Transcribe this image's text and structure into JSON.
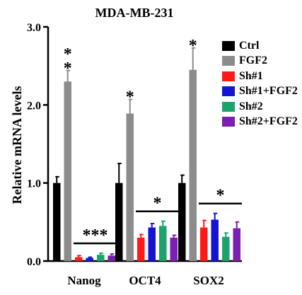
{
  "chart_data": {
    "type": "bar",
    "title": "MDA-MB-231",
    "xlabel": "",
    "ylabel": "Relative mRNA levels",
    "ylim": [
      0,
      3.0
    ],
    "yticks": [
      "0.0",
      "1.0",
      "2.0",
      "3.0"
    ],
    "categories": [
      "Nanog",
      "OCT4",
      "SOX2"
    ],
    "series": [
      {
        "name": "Ctrl",
        "color": "#000000",
        "values": [
          1.0,
          1.0,
          1.0
        ],
        "errors": [
          0.08,
          0.25,
          0.1
        ]
      },
      {
        "name": "FGF2",
        "color": "#8c8c8c",
        "values": [
          2.3,
          1.89,
          2.45
        ],
        "errors": [
          0.14,
          0.18,
          0.28
        ]
      },
      {
        "name": "Sh#1",
        "color": "#ff1a1a",
        "values": [
          0.05,
          0.3,
          0.43
        ],
        "errors": [
          0.02,
          0.04,
          0.09
        ]
      },
      {
        "name": "Sh#1+FGF2",
        "color": "#1414d2",
        "values": [
          0.04,
          0.43,
          0.53
        ],
        "errors": [
          0.01,
          0.05,
          0.08
        ]
      },
      {
        "name": "Sh#2",
        "color": "#1ba36b",
        "values": [
          0.08,
          0.45,
          0.31
        ],
        "errors": [
          0.02,
          0.06,
          0.05
        ]
      },
      {
        "name": "Sh#2+FGF2",
        "color": "#7a1fb0",
        "values": [
          0.07,
          0.3,
          0.42
        ],
        "errors": [
          0.02,
          0.03,
          0.08
        ]
      }
    ],
    "annotations": [
      {
        "text": "*",
        "category": "Nanog",
        "series": "FGF2"
      },
      {
        "text": "*",
        "category": "Nanog",
        "series": "FGF2"
      },
      {
        "text": "*",
        "category": "OCT4",
        "series": "FGF2"
      },
      {
        "text": "*",
        "category": "SOX2",
        "series": "FGF2"
      },
      {
        "text": "***",
        "category": "Nanog",
        "group": "knockdown"
      },
      {
        "text": "*",
        "category": "OCT4",
        "group": "knockdown"
      },
      {
        "text": "*",
        "category": "SOX2",
        "group": "knockdown"
      }
    ],
    "legend_position": "top-right",
    "grid": false
  }
}
